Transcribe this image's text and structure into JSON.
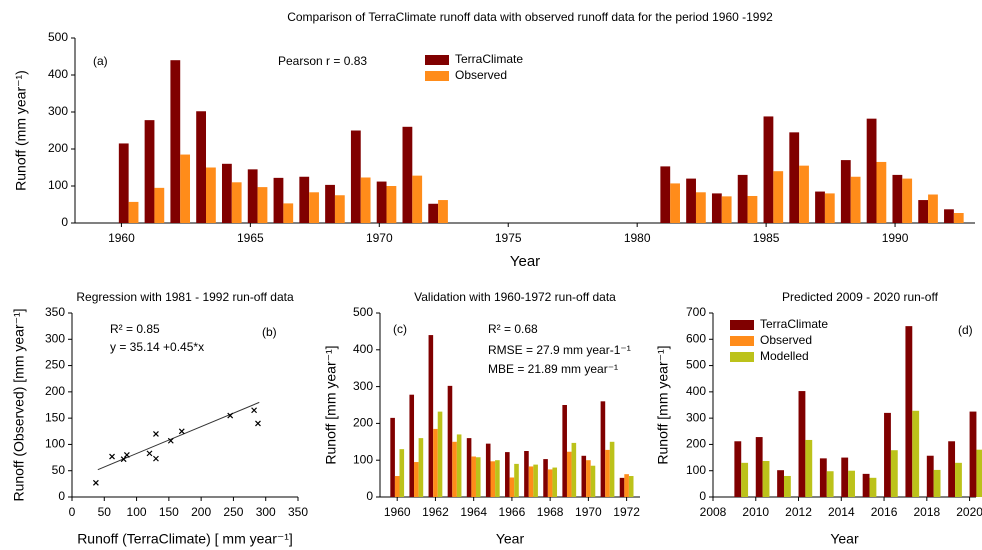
{
  "title": "Comparison of TerraClimate runoff data with observed runoff data for the period 1960 -1992",
  "chart_data": [
    {
      "type": "bar",
      "xlabel": "Year",
      "ylabel": "Runoff (mm year⁻¹)",
      "x": [
        1960,
        1961,
        1962,
        1963,
        1964,
        1965,
        1966,
        1967,
        1968,
        1969,
        1970,
        1971,
        1972,
        1981,
        1982,
        1983,
        1984,
        1985,
        1986,
        1987,
        1988,
        1989,
        1990,
        1991,
        1992
      ],
      "series": [
        {
          "name": "TerraClimate",
          "color": "#800000",
          "values": [
            215,
            278,
            440,
            302,
            160,
            145,
            122,
            125,
            103,
            250,
            112,
            260,
            52,
            153,
            120,
            80,
            130,
            288,
            245,
            85,
            170,
            282,
            130,
            62,
            37
          ]
        },
        {
          "name": "Observed",
          "color": "#ff8c1a",
          "values": [
            57,
            95,
            185,
            150,
            110,
            97,
            53,
            83,
            75,
            123,
            100,
            128,
            62,
            107,
            83,
            72,
            73,
            140,
            155,
            80,
            125,
            165,
            120,
            77,
            27
          ]
        }
      ],
      "xlim": [
        1958.2,
        1993.1
      ],
      "xticks": [
        1960,
        1965,
        1970,
        1975,
        1980,
        1985,
        1990
      ],
      "ylim": [
        0,
        500
      ],
      "yticks": [
        0,
        100,
        200,
        300,
        400,
        500
      ],
      "annotations": [
        "(a)",
        "Pearson r = 0.83"
      ],
      "legend": "top-center"
    },
    {
      "type": "scatter",
      "title": "Regression with 1981 - 1992 run-off data",
      "xlabel": "Runoff (TerraClimate) [ mm year⁻¹]",
      "ylabel": "Runoff (Observed) [mm year⁻¹]",
      "x": [
        37,
        62,
        80,
        85,
        120,
        130,
        130,
        153,
        170,
        245,
        282,
        288
      ],
      "y": [
        27,
        77,
        72,
        80,
        83,
        73,
        120,
        107,
        125,
        155,
        165,
        140
      ],
      "fit_line": {
        "x": [
          40,
          290
        ],
        "y": [
          52,
          180
        ]
      },
      "xlim": [
        0,
        350
      ],
      "xticks": [
        0,
        50,
        100,
        150,
        200,
        250,
        300,
        350
      ],
      "ylim": [
        0,
        350
      ],
      "yticks": [
        0,
        50,
        100,
        150,
        200,
        250,
        300,
        350
      ],
      "annotations": [
        "R² = 0.85",
        "y = 35.14 +0.45*x",
        "(b)"
      ]
    },
    {
      "type": "bar",
      "title": "Validation with 1960-1972 run-off data",
      "xlabel": "Year",
      "ylabel": "Runoff [mm year⁻¹]",
      "x": [
        1960,
        1961,
        1962,
        1963,
        1964,
        1965,
        1966,
        1967,
        1968,
        1969,
        1970,
        1971,
        1972
      ],
      "series": [
        {
          "color": "#800000",
          "values": [
            215,
            278,
            440,
            302,
            160,
            145,
            122,
            125,
            103,
            250,
            112,
            260,
            52
          ]
        },
        {
          "color": "#ff8c1a",
          "values": [
            57,
            95,
            185,
            150,
            110,
            97,
            53,
            83,
            75,
            123,
            100,
            128,
            62
          ]
        },
        {
          "color": "#bcc21a",
          "values": [
            130,
            160,
            232,
            170,
            108,
            100,
            90,
            88,
            80,
            147,
            85,
            150,
            57
          ]
        }
      ],
      "xlim": [
        1959.1,
        1972.7
      ],
      "xticks": [
        1960,
        1962,
        1964,
        1966,
        1968,
        1970,
        1972
      ],
      "ylim": [
        0,
        500
      ],
      "yticks": [
        0,
        100,
        200,
        300,
        400,
        500
      ],
      "annotations": [
        "(c)",
        "R² = 0.68",
        "RMSE = 27.9 mm year-1⁻¹",
        "MBE = 21.89 mm year⁻¹"
      ]
    },
    {
      "type": "bar",
      "title": "Predicted 2009 - 2020 run-off",
      "xlabel": "Year",
      "ylabel": "Runoff [mm year⁻¹]",
      "x": [
        2009,
        2010,
        2011,
        2012,
        2013,
        2014,
        2015,
        2016,
        2017,
        2018,
        2019,
        2020
      ],
      "series": [
        {
          "name": "TerraClimate",
          "color": "#800000",
          "values": [
            212,
            228,
            102,
            403,
            147,
            150,
            88,
            320,
            650,
            157,
            212,
            325
          ]
        },
        {
          "name": "Observed",
          "color": "#ff8c1a",
          "values": [
            null,
            null,
            null,
            null,
            null,
            null,
            null,
            null,
            null,
            null,
            null,
            null
          ]
        },
        {
          "name": "Modelled",
          "color": "#bcc21a",
          "values": [
            130,
            137,
            80,
            217,
            98,
            100,
            73,
            178,
            328,
            103,
            130,
            180
          ]
        }
      ],
      "xlim": [
        2008,
        2020.3
      ],
      "xticks": [
        2008,
        2010,
        2012,
        2014,
        2016,
        2018,
        2020
      ],
      "ylim": [
        0,
        700
      ],
      "yticks": [
        0,
        100,
        200,
        300,
        400,
        500,
        600,
        700
      ],
      "annotations": [
        "(d)"
      ],
      "legend": "top-left"
    }
  ]
}
